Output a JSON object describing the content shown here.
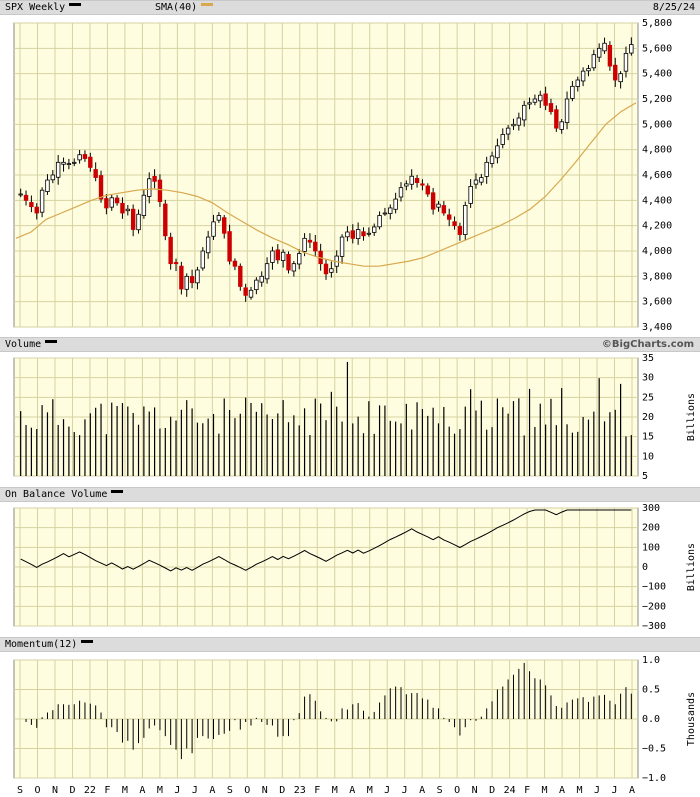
{
  "header": {
    "ticker_label": "SPX Weekly",
    "sma_label": "SMA(40)",
    "date": "8/25/24",
    "watermark": "©BigCharts.com"
  },
  "colors": {
    "panel_bg": "#fffde0",
    "grid": "#d6d2a0",
    "up": "#000000",
    "down": "#cc0000",
    "sma": "#d8a84c",
    "header_bg": "#dcdcdc"
  },
  "x_axis_labels": [
    "S",
    "O",
    "N",
    "D",
    "22",
    "F",
    "M",
    "A",
    "M",
    "J",
    "J",
    "A",
    "S",
    "O",
    "N",
    "D",
    "23",
    "F",
    "M",
    "A",
    "M",
    "J",
    "J",
    "A",
    "S",
    "O",
    "N",
    "D",
    "24",
    "F",
    "M",
    "A",
    "M",
    "J",
    "J",
    "A"
  ],
  "panels": {
    "volume": {
      "title": "Volume"
    },
    "obv": {
      "title": "On Balance Volume"
    },
    "momentum": {
      "title": "Momentum(12)"
    }
  },
  "chart_data": [
    {
      "type": "candlestick",
      "title": "SPX Weekly",
      "series_overlay": "SMA(40)",
      "ylim": [
        3400,
        5800
      ],
      "y_ticks": [
        "3,400",
        "3,600",
        "3,800",
        "4,000",
        "4,200",
        "4,400",
        "4,600",
        "4,800",
        "5,000",
        "5,200",
        "5,400",
        "5,600",
        "5,800"
      ],
      "closes_approx": [
        4450,
        4400,
        4350,
        4300,
        4480,
        4560,
        4600,
        4700,
        4700,
        4690,
        4700,
        4760,
        4730,
        4660,
        4580,
        4410,
        4340,
        4420,
        4380,
        4300,
        4330,
        4170,
        4290,
        4440,
        4570,
        4550,
        4390,
        4120,
        3900,
        3900,
        3700,
        3800,
        3750,
        3850,
        4000,
        4110,
        4230,
        4280,
        4140,
        3920,
        3880,
        3720,
        3650,
        3690,
        3770,
        3800,
        3900,
        4000,
        3930,
        3990,
        3850,
        3900,
        3980,
        4100,
        4070,
        4000,
        3900,
        3820,
        3860,
        3960,
        4110,
        4150,
        4100,
        4170,
        4120,
        4140,
        4190,
        4280,
        4300,
        4340,
        4410,
        4500,
        4530,
        4590,
        4540,
        4520,
        4450,
        4330,
        4370,
        4300,
        4250,
        4200,
        4130,
        4360,
        4510,
        4560,
        4580,
        4700,
        4750,
        4830,
        4920,
        4970,
        5000,
        5050,
        5150,
        5170,
        5200,
        5230,
        5150,
        5100,
        4970,
        5020,
        5200,
        5300,
        5350,
        5420,
        5440,
        5550,
        5600,
        5640,
        5460,
        5350,
        5400,
        5560,
        5630
      ],
      "sma_approx": [
        4100,
        4150,
        4250,
        4300,
        4350,
        4400,
        4440,
        4460,
        4480,
        4490,
        4480,
        4460,
        4430,
        4380,
        4300,
        4230,
        4160,
        4100,
        4050,
        3990,
        3950,
        3920,
        3900,
        3880,
        3880,
        3900,
        3920,
        3950,
        4000,
        4050,
        4100,
        4150,
        4200,
        4260,
        4330,
        4430,
        4560,
        4700,
        4850,
        5000,
        5100,
        5170
      ]
    },
    {
      "type": "bar",
      "title": "Volume",
      "unit": "Billions",
      "ylim": [
        5,
        35
      ],
      "y_ticks": [
        "35",
        "30",
        "25",
        "20",
        "15",
        "10",
        "5"
      ]
    },
    {
      "type": "line",
      "title": "On Balance Volume",
      "unit": "Billions",
      "ylim": [
        -300,
        300
      ],
      "y_ticks": [
        "300",
        "200",
        "100",
        "0",
        "−100",
        "−200",
        "−300"
      ]
    },
    {
      "type": "bar",
      "title": "Momentum(12)",
      "unit": "Thousands",
      "ylim": [
        -1.0,
        1.0
      ],
      "y_ticks": [
        "1.0",
        "0.5",
        "0.0",
        "−0.5",
        "−1.0"
      ]
    }
  ]
}
